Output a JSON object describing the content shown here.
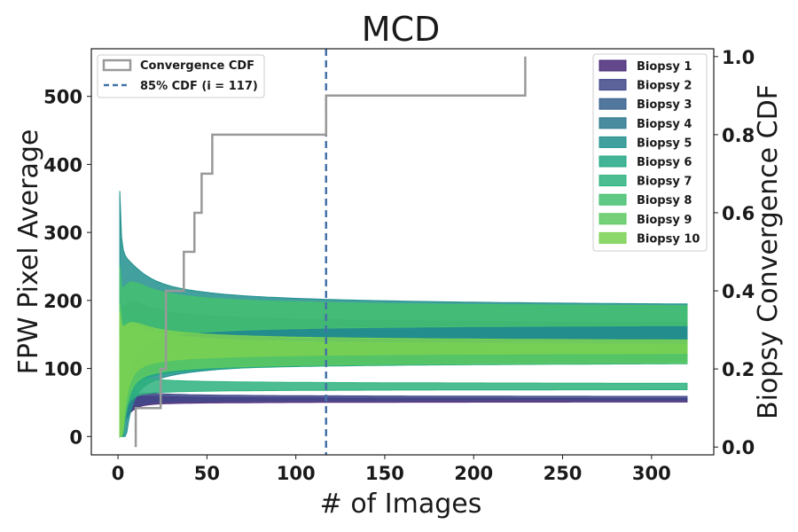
{
  "chart_data": {
    "type": "area",
    "title": "MCD",
    "xlabel": "# of Images",
    "ylabel_left": "FPW Pixel Average",
    "ylabel_right": "Biopsy Convergence CDF",
    "xlim": [
      -15,
      335
    ],
    "ylim_left": [
      -27,
      570
    ],
    "ylim_right": [
      -0.02,
      1.02
    ],
    "x_ticks": [
      0,
      50,
      100,
      150,
      200,
      250,
      300
    ],
    "y_left_ticks": [
      0,
      100,
      200,
      300,
      400,
      500
    ],
    "y_right_ticks": [
      0.0,
      0.2,
      0.4,
      0.6,
      0.8,
      1.0
    ],
    "y_right_tick_labels": [
      "0.0",
      "0.2",
      "0.4",
      "0.6",
      "0.8",
      "1.0"
    ],
    "grid": false,
    "series": [
      {
        "name": "Biopsy 1",
        "color": "#482878",
        "final_mean": 53,
        "final_width": 4,
        "spike": 60,
        "rise_scale": 4
      },
      {
        "name": "Biopsy 2",
        "color": "#3f4788",
        "final_mean": 56,
        "final_width": 4,
        "spike": 70,
        "rise_scale": 4
      },
      {
        "name": "Biopsy 3",
        "color": "#35608d",
        "final_mean": 153,
        "final_width": 20,
        "spike": 330,
        "rise_scale": 3
      },
      {
        "name": "Biopsy 4",
        "color": "#2a788e",
        "final_mean": 150,
        "final_width": 14,
        "spike": 300,
        "rise_scale": 3
      },
      {
        "name": "Biopsy 5",
        "color": "#21908d",
        "final_mean": 148,
        "final_width": 78,
        "spike": 560,
        "rise_scale": 3
      },
      {
        "name": "Biopsy 6",
        "color": "#22a884",
        "final_mean": 118,
        "final_width": 18,
        "spike": 350,
        "rise_scale": 3
      },
      {
        "name": "Biopsy 7",
        "color": "#2db27d",
        "final_mean": 73,
        "final_width": 8,
        "spike": 90,
        "rise_scale": 3
      },
      {
        "name": "Biopsy 8",
        "color": "#44bf70",
        "final_mean": 176,
        "final_width": 22,
        "spike": 380,
        "rise_scale": 3
      },
      {
        "name": "Biopsy 9",
        "color": "#5ec962",
        "final_mean": 120,
        "final_width": 22,
        "spike": 300,
        "rise_scale": 3
      },
      {
        "name": "Biopsy 10",
        "color": "#7ad151",
        "final_mean": 131,
        "final_width": 14,
        "spike": 280,
        "rise_scale": 3
      }
    ],
    "x_end": 320,
    "cdf": {
      "name": "Convergence CDF",
      "color": "#999999",
      "steps": [
        {
          "x": 10,
          "y": 0.0
        },
        {
          "x": 10,
          "y": 0.1
        },
        {
          "x": 24,
          "y": 0.1
        },
        {
          "x": 24,
          "y": 0.2
        },
        {
          "x": 27,
          "y": 0.2
        },
        {
          "x": 27,
          "y": 0.4
        },
        {
          "x": 37,
          "y": 0.4
        },
        {
          "x": 37,
          "y": 0.5
        },
        {
          "x": 43,
          "y": 0.5
        },
        {
          "x": 43,
          "y": 0.6
        },
        {
          "x": 47,
          "y": 0.6
        },
        {
          "x": 47,
          "y": 0.7
        },
        {
          "x": 53,
          "y": 0.7
        },
        {
          "x": 53,
          "y": 0.8
        },
        {
          "x": 117,
          "y": 0.8
        },
        {
          "x": 117,
          "y": 0.9
        },
        {
          "x": 229,
          "y": 0.9
        },
        {
          "x": 229,
          "y": 1.0
        }
      ]
    },
    "threshold": {
      "name": "85% CDF (i = 117)",
      "x": 117,
      "color": "#4472a8"
    },
    "legend_left": [
      "Convergence CDF",
      "85% CDF (i = 117)"
    ],
    "legend_placement_left": "top-left",
    "legend_placement_right": "top-right"
  }
}
